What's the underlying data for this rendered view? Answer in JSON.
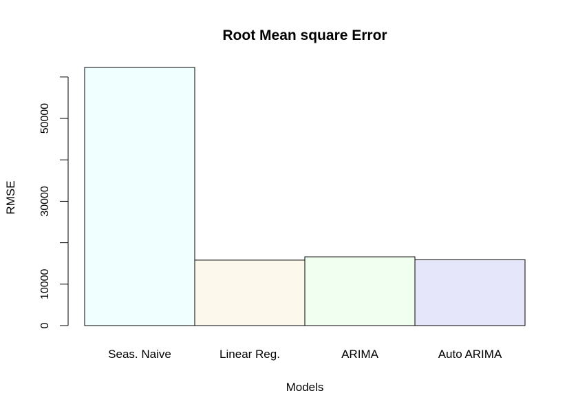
{
  "chart_data": {
    "type": "bar",
    "title": "Root Mean square Error",
    "xlabel": "Models",
    "ylabel": "RMSE",
    "categories": [
      "Seas. Naive",
      "Linear Reg.",
      "ARIMA",
      "Auto ARIMA"
    ],
    "values": [
      62300,
      15800,
      16600,
      15900
    ],
    "colors": [
      "#f0ffff",
      "#fdf8ec",
      "#f0fff0",
      "#e6e6fa"
    ],
    "bar_outline_color": "#000000",
    "yticks": [
      0,
      10000,
      20000,
      30000,
      40000,
      50000,
      60000
    ],
    "ytick_labels": [
      "0",
      "10000",
      "",
      "30000",
      "",
      "50000",
      ""
    ],
    "ylim": [
      0,
      62300
    ],
    "grid": false,
    "legend": "none"
  }
}
